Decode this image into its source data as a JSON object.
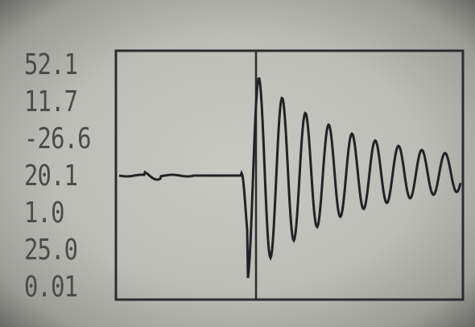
{
  "readings": [
    "52.1",
    "11.7",
    "-26.6",
    "20.1",
    "1.0",
    "25.0",
    "0.01"
  ]
}
